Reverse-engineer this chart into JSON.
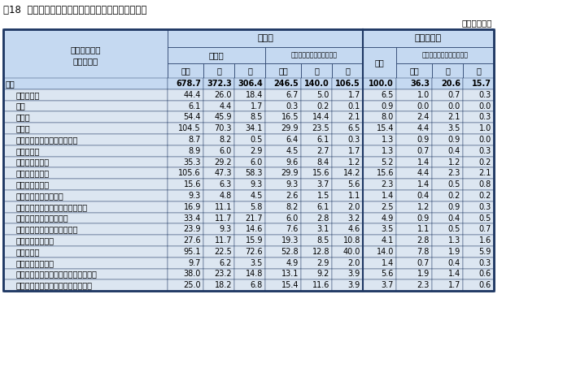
{
  "title": "表18  主な産業別職業訓練・自己啓発をした有業者数",
  "unit_note": "（千人、％）",
  "header_bg": "#c5d9f1",
  "data_bg": "#dce6f1",
  "title_bg": "#ffffff",
  "border_color": "#1f3864",
  "border_thin": "#4472c4",
  "industries": [
    "総数",
    "  農業，林業",
    "  漁業",
    "  建設業",
    "  製造業",
    "  電気・ガス・熱供給・水道業",
    "  情報通信業",
    "  運輸業，郵便業",
    "  卸売業，小売業",
    "  金融業，保険業",
    "  不動産業，物品賃貸業",
    "  学術研究，専門・技術サービス業",
    "  宿泊業，飲食サービス業",
    "  生活関連サービス業，娯楽業",
    "  教育，学習支援業",
    "  医療，福祉",
    "  複合サービス事業",
    "  サービス業（他に分類されないもの）",
    "  公務（他に分類されるものを除く）"
  ],
  "data": [
    [
      678.7,
      372.3,
      306.4,
      246.5,
      140.0,
      106.5,
      100.0,
      36.3,
      20.6,
      15.7
    ],
    [
      44.4,
      26.0,
      18.4,
      6.7,
      5.0,
      1.7,
      6.5,
      1.0,
      0.7,
      0.3
    ],
    [
      6.1,
      4.4,
      1.7,
      0.3,
      0.2,
      0.1,
      0.9,
      0.0,
      0.0,
      0.0
    ],
    [
      54.4,
      45.9,
      8.5,
      16.5,
      14.4,
      2.1,
      8.0,
      2.4,
      2.1,
      0.3
    ],
    [
      104.5,
      70.3,
      34.1,
      29.9,
      23.5,
      6.5,
      15.4,
      4.4,
      3.5,
      1.0
    ],
    [
      8.7,
      8.2,
      0.5,
      6.4,
      6.1,
      0.3,
      1.3,
      0.9,
      0.9,
      0.0
    ],
    [
      8.9,
      6.0,
      2.9,
      4.5,
      2.7,
      1.7,
      1.3,
      0.7,
      0.4,
      0.3
    ],
    [
      35.3,
      29.2,
      6.0,
      9.6,
      8.4,
      1.2,
      5.2,
      1.4,
      1.2,
      0.2
    ],
    [
      105.6,
      47.3,
      58.3,
      29.9,
      15.6,
      14.2,
      15.6,
      4.4,
      2.3,
      2.1
    ],
    [
      15.6,
      6.3,
      9.3,
      9.3,
      3.7,
      5.6,
      2.3,
      1.4,
      0.5,
      0.8
    ],
    [
      9.3,
      4.8,
      4.5,
      2.6,
      1.5,
      1.1,
      1.4,
      0.4,
      0.2,
      0.2
    ],
    [
      16.9,
      11.1,
      5.8,
      8.2,
      6.1,
      2.0,
      2.5,
      1.2,
      0.9,
      0.3
    ],
    [
      33.4,
      11.7,
      21.7,
      6.0,
      2.8,
      3.2,
      4.9,
      0.9,
      0.4,
      0.5
    ],
    [
      23.9,
      9.3,
      14.6,
      7.6,
      3.1,
      4.6,
      3.5,
      1.1,
      0.5,
      0.7
    ],
    [
      27.6,
      11.7,
      15.9,
      19.3,
      8.5,
      10.8,
      4.1,
      2.8,
      1.3,
      1.6
    ],
    [
      95.1,
      22.5,
      72.6,
      52.8,
      12.8,
      40.0,
      14.0,
      7.8,
      1.9,
      5.9
    ],
    [
      9.7,
      6.2,
      3.5,
      4.9,
      2.9,
      2.0,
      1.4,
      0.7,
      0.4,
      0.3
    ],
    [
      38.0,
      23.2,
      14.8,
      13.1,
      9.2,
      3.9,
      5.6,
      1.9,
      1.4,
      0.6
    ],
    [
      25.0,
      18.2,
      6.8,
      15.4,
      11.6,
      3.9,
      3.7,
      2.3,
      1.7,
      0.6
    ]
  ],
  "row_header_line1": "従業上の地位",
  "row_header_line2": "・雇用形態"
}
